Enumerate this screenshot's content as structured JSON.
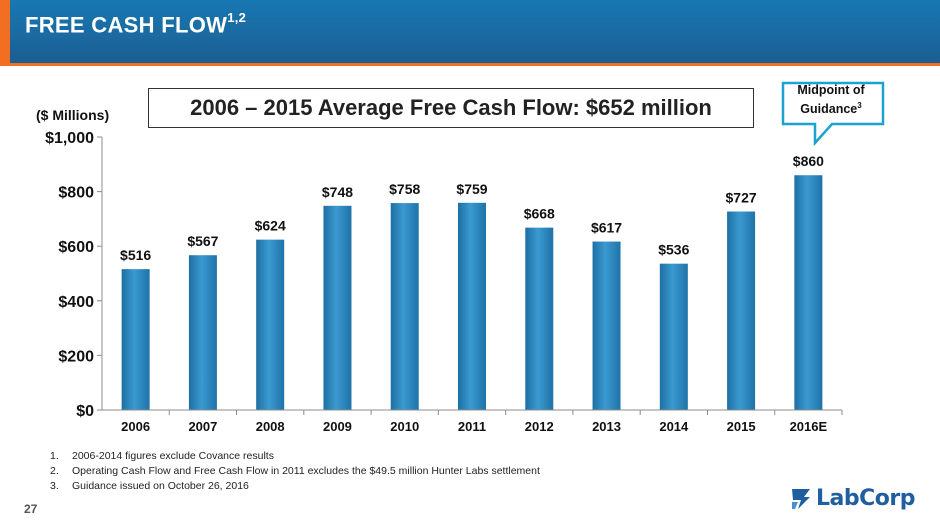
{
  "header": {
    "title": "FREE CASH FLOW",
    "title_sup": "1,2"
  },
  "average_banner": "2006 – 2015 Average Free Cash Flow: $652 million",
  "callout": {
    "line1": "Midpoint of",
    "line2": "Guidance",
    "sup": "3"
  },
  "footnotes": [
    {
      "num": "1.",
      "text": "2006-2014 figures exclude Covance results"
    },
    {
      "num": "2.",
      "text": "Operating Cash Flow and Free Cash Flow in 2011 excludes the $49.5 million Hunter Labs settlement"
    },
    {
      "num": "3.",
      "text": "Guidance issued on October 26, 2016"
    }
  ],
  "page_number": "27",
  "logo_text": "LabCorp",
  "colors": {
    "bar": "#2b88bd",
    "header": "#1b6aa1",
    "accent": "#f26f21",
    "callout": "#1aa3cf"
  },
  "chart_data": {
    "type": "bar",
    "categories": [
      "2006",
      "2007",
      "2008",
      "2009",
      "2010",
      "2011",
      "2012",
      "2013",
      "2014",
      "2015",
      "2016E"
    ],
    "values": [
      516,
      567,
      624,
      748,
      758,
      759,
      668,
      617,
      536,
      727,
      860
    ],
    "value_labels": [
      "$516",
      "$567",
      "$624",
      "$748",
      "$758",
      "$759",
      "$668",
      "$617",
      "$536",
      "$727",
      "$860"
    ],
    "ylabel": "($ Millions)",
    "ylim": [
      0,
      1000
    ],
    "yticks": [
      0,
      200,
      400,
      600,
      800,
      1000
    ],
    "ytick_labels": [
      "$0",
      "$200",
      "$400",
      "$600",
      "$800",
      "$1,000"
    ],
    "grid": false,
    "legend": "none"
  }
}
